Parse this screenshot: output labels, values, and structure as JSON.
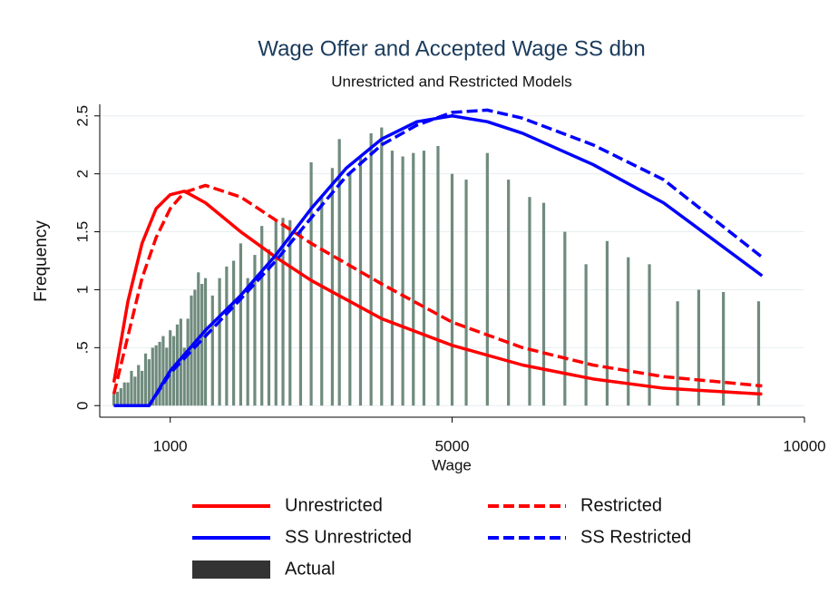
{
  "chart_data": {
    "type": "line",
    "title": "Wage Offer and Accepted Wage SS dbn",
    "subtitle": "Unrestricted and Restricted Models",
    "x_label": "Wage",
    "y_label": "Frequency",
    "xlim": [
      0,
      10000
    ],
    "xticks": [
      1000,
      5000,
      10000
    ],
    "ylim": [
      -0.1,
      2.6
    ],
    "yticks": [
      0,
      {
        "value": 0.5,
        "label": ".5"
      },
      1,
      1.5,
      2,
      2.5
    ],
    "grid": true,
    "legend": "bottom",
    "series": [
      {
        "name": "Unrestricted",
        "color": "#ff0000",
        "dash": false,
        "x": [
          200,
          400,
          600,
          800,
          1000,
          1200,
          1500,
          2000,
          2500,
          3000,
          4000,
          5000,
          6000,
          7000,
          8000,
          9400
        ],
        "values": [
          0.2,
          0.9,
          1.4,
          1.7,
          1.82,
          1.85,
          1.75,
          1.5,
          1.28,
          1.08,
          0.75,
          0.52,
          0.35,
          0.23,
          0.15,
          0.1
        ]
      },
      {
        "name": "Restricted",
        "color": "#ff0000",
        "dash": true,
        "x": [
          200,
          400,
          600,
          800,
          1000,
          1200,
          1500,
          2000,
          2500,
          3000,
          4000,
          5000,
          6000,
          7000,
          8000,
          9400
        ],
        "values": [
          0.1,
          0.6,
          1.1,
          1.45,
          1.7,
          1.84,
          1.9,
          1.8,
          1.6,
          1.4,
          1.05,
          0.72,
          0.5,
          0.35,
          0.25,
          0.17
        ]
      },
      {
        "name": "SS Unrestricted",
        "color": "#0000ff",
        "dash": false,
        "x": [
          200,
          700,
          1000,
          1500,
          2000,
          2500,
          3000,
          3500,
          4000,
          4500,
          5000,
          5500,
          6000,
          7000,
          8000,
          9400
        ],
        "values": [
          0,
          0,
          0.3,
          0.65,
          0.95,
          1.3,
          1.7,
          2.05,
          2.3,
          2.45,
          2.5,
          2.45,
          2.35,
          2.08,
          1.75,
          1.12
        ]
      },
      {
        "name": "SS Restricted",
        "color": "#0000ff",
        "dash": true,
        "x": [
          200,
          700,
          1000,
          1500,
          2000,
          2500,
          3000,
          3500,
          4000,
          4500,
          5000,
          5500,
          6000,
          7000,
          8000,
          9400
        ],
        "values": [
          0,
          0,
          0.28,
          0.6,
          0.92,
          1.25,
          1.62,
          1.98,
          2.25,
          2.42,
          2.53,
          2.55,
          2.48,
          2.25,
          1.95,
          1.28
        ]
      },
      {
        "name": "Actual",
        "type": "bar",
        "color": "#6f8b7d",
        "legend_color": "#333333",
        "x": [
          200,
          250,
          300,
          350,
          400,
          450,
          500,
          550,
          600,
          650,
          700,
          750,
          800,
          850,
          900,
          950,
          1000,
          1050,
          1100,
          1150,
          1200,
          1250,
          1300,
          1350,
          1400,
          1450,
          1500,
          1600,
          1700,
          1800,
          1900,
          2000,
          2100,
          2200,
          2300,
          2400,
          2500,
          2600,
          2700,
          2850,
          3000,
          3150,
          3300,
          3400,
          3550,
          3700,
          3850,
          4000,
          4150,
          4300,
          4450,
          4600,
          4800,
          5000,
          5200,
          5500,
          5800,
          6100,
          6300,
          6600,
          6900,
          7200,
          7500,
          7800,
          8200,
          8500,
          8850,
          9350
        ],
        "values": [
          0.1,
          0.12,
          0.15,
          0.2,
          0.2,
          0.3,
          0.25,
          0.35,
          0.3,
          0.45,
          0.4,
          0.5,
          0.52,
          0.55,
          0.6,
          0.5,
          0.65,
          0.6,
          0.7,
          0.75,
          0.5,
          0.75,
          0.95,
          1.0,
          1.15,
          1.05,
          1.1,
          0.95,
          1.1,
          1.2,
          1.25,
          1.4,
          1.1,
          1.3,
          1.55,
          1.35,
          1.6,
          1.62,
          1.6,
          1.5,
          2.1,
          1.8,
          2.05,
          2.3,
          2.0,
          2.15,
          2.35,
          2.4,
          2.2,
          2.15,
          2.18,
          2.2,
          2.24,
          2.0,
          1.95,
          2.18,
          1.95,
          1.8,
          1.75,
          1.5,
          1.22,
          1.42,
          1.28,
          1.22,
          0.9,
          1.0,
          0.98,
          0.9
        ]
      }
    ]
  }
}
